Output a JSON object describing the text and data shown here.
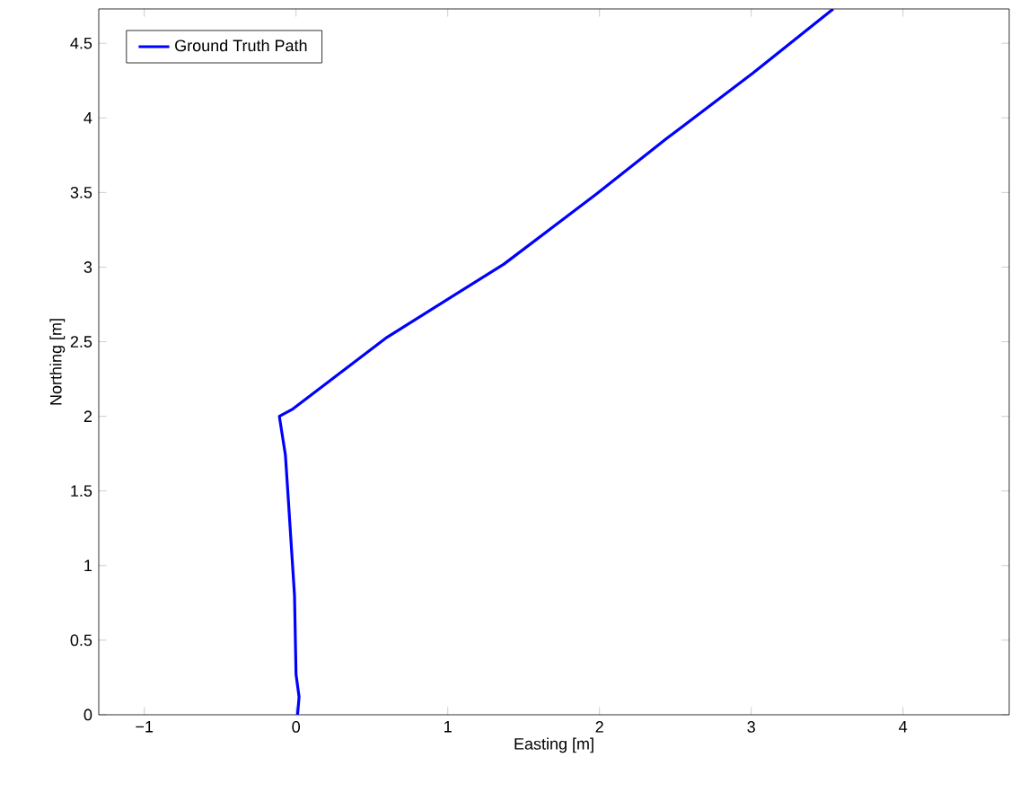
{
  "chart_data": {
    "type": "line",
    "xlabel": "Easting [m]",
    "ylabel": "Northing [m]",
    "series": [
      {
        "name": "Ground Truth Path",
        "color": "#0000ff",
        "x": [
          0.01,
          0.02,
          0.0,
          -0.01,
          -0.05,
          -0.07,
          -0.11,
          -0.02,
          0.6,
          1.37,
          1.98,
          2.44,
          3.01,
          3.54
        ],
        "values": [
          0,
          0.12,
          0.27,
          0.8,
          1.43,
          1.74,
          2.0,
          2.05,
          2.53,
          3.02,
          3.49,
          3.86,
          4.3,
          4.73
        ]
      }
    ],
    "xlim": [
      -1.3,
      4.7
    ],
    "ylim": [
      0,
      4.73
    ],
    "xticks": [
      {
        "value": -1,
        "label": "−1"
      },
      0,
      1,
      2,
      3,
      4
    ],
    "yticks": [
      0,
      0.5,
      1,
      1.5,
      2,
      2.5,
      3,
      3.5,
      4,
      4.5
    ],
    "legend": "top left",
    "grid": false,
    "marker": "none",
    "line_style": "solid"
  }
}
